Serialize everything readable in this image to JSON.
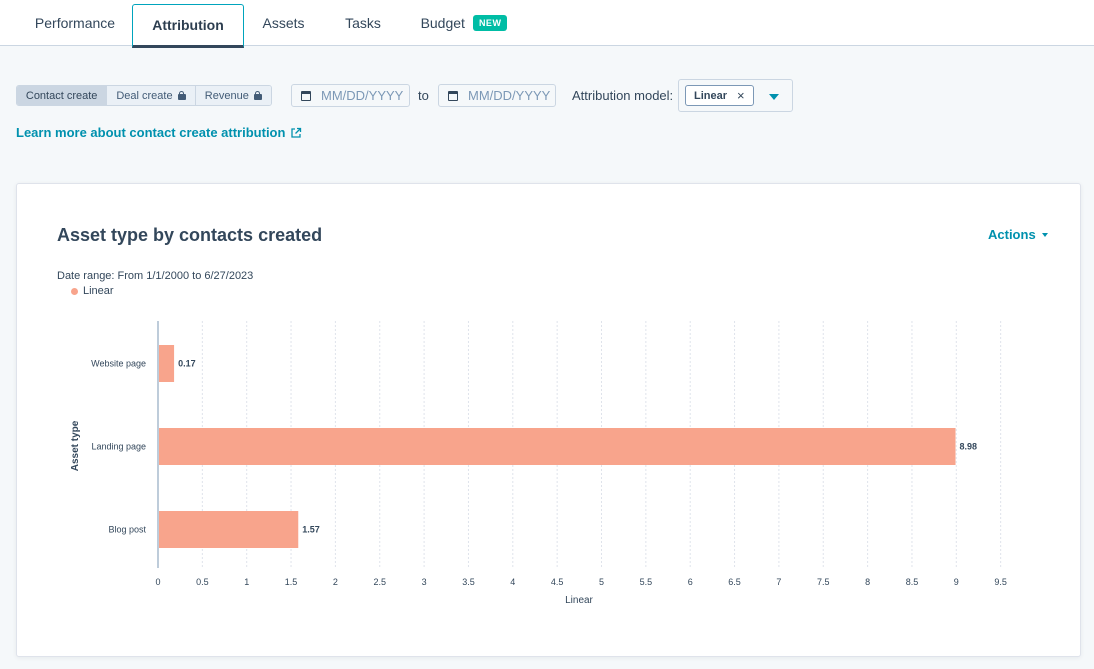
{
  "tabs": [
    {
      "label": "Performance"
    },
    {
      "label": "Attribution"
    },
    {
      "label": "Assets"
    },
    {
      "label": "Tasks"
    },
    {
      "label": "Budget",
      "badge": "NEW"
    }
  ],
  "filters": {
    "segments": [
      {
        "label": "Contact create",
        "locked": false
      },
      {
        "label": "Deal create",
        "locked": true
      },
      {
        "label": "Revenue",
        "locked": true
      }
    ],
    "date_from_placeholder": "MM/DD/YYYY",
    "to_label": "to",
    "date_to_placeholder": "MM/DD/YYYY",
    "model_label": "Attribution model:",
    "model_value": "Linear",
    "model_remove": "×"
  },
  "learn_link": "Learn more about contact create attribution",
  "card": {
    "title": "Asset type by contacts created",
    "actions_label": "Actions",
    "date_range": "Date range: From 1/1/2000 to 6/27/2023",
    "legend_label": "Linear"
  },
  "colors": {
    "bar": "#f8a48c",
    "accent": "#0091ae",
    "badge": "#00bda5"
  },
  "chart_data": {
    "type": "bar",
    "orientation": "horizontal",
    "categories": [
      "Website page",
      "Landing page",
      "Blog post"
    ],
    "series": [
      {
        "name": "Linear",
        "values": [
          0.17,
          8.98,
          1.57
        ]
      }
    ],
    "data_labels": [
      "0.17",
      "8.98",
      "1.57"
    ],
    "xlabel": "Linear",
    "ylabel": "Asset type",
    "xlim": [
      0,
      9.5
    ],
    "x_ticks": [
      "0",
      "0.5",
      "1",
      "1.5",
      "2",
      "2.5",
      "3",
      "3.5",
      "4",
      "4.5",
      "5",
      "5.5",
      "6",
      "6.5",
      "7",
      "7.5",
      "8",
      "8.5",
      "9",
      "9.5"
    ],
    "grid": "vertical dashed",
    "legend": "top-left"
  }
}
